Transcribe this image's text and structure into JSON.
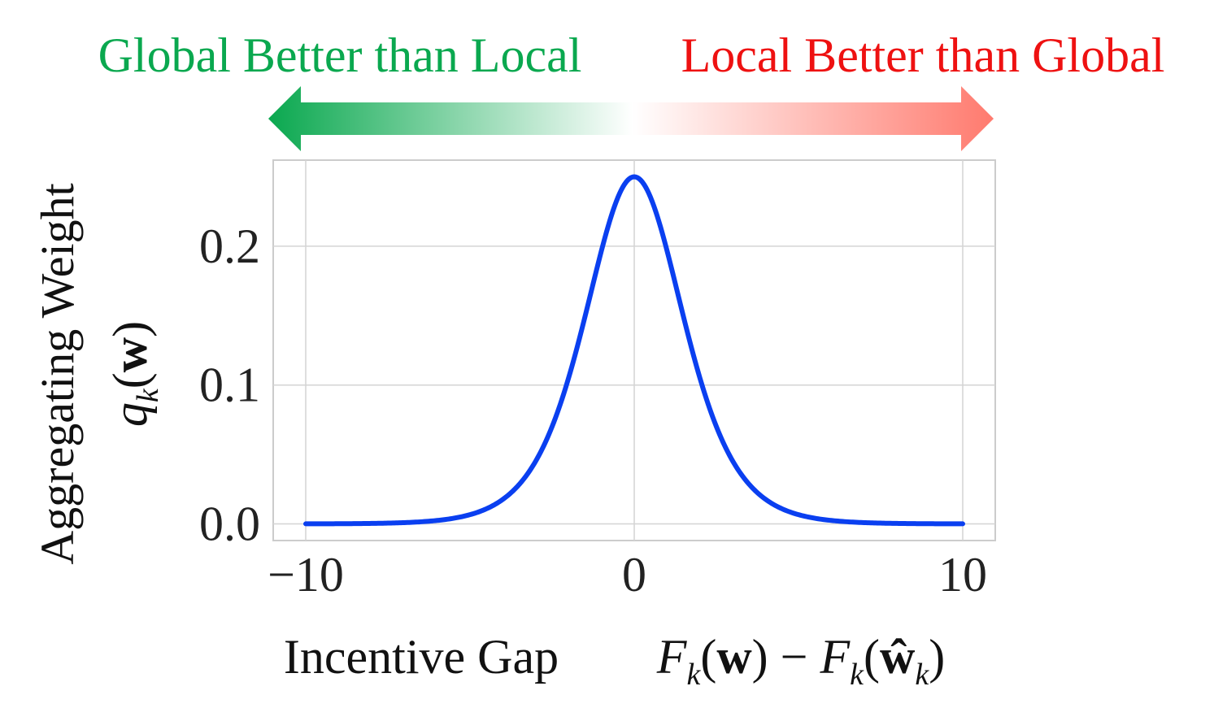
{
  "chart_data": {
    "type": "line",
    "title": "",
    "annotations": {
      "left_label": "Global Better than Local",
      "right_label": "Local Better than Global",
      "left_color": "#0aa84f",
      "right_color": "#ee1111",
      "arrow_left_color": "#0aa84f",
      "arrow_right_color": "#ff7a6e"
    },
    "ylabel_line1": "Aggregating Weight",
    "ylabel_math": "q_k(w)",
    "xlabel_text": "Incentive Gap",
    "xlabel_math": "F_k(w) − F_k(ŵ_k)",
    "xlim": [
      -10,
      10
    ],
    "ylim": [
      -0.012,
      0.262
    ],
    "xticks": [
      -10,
      0,
      10
    ],
    "xtick_labels": [
      "−10",
      "0",
      "10"
    ],
    "yticks": [
      0.0,
      0.1,
      0.2
    ],
    "ytick_labels": [
      "0.0",
      "0.1",
      "0.2"
    ],
    "grid": true,
    "series": [
      {
        "color": "#0a3ff0",
        "x": [
          -10,
          -9,
          -8,
          -7,
          -6,
          -5,
          -4,
          -3,
          -2.5,
          -2,
          -1.5,
          -1,
          -0.5,
          0,
          0.5,
          1,
          1.5,
          2,
          2.5,
          3,
          4,
          5,
          6,
          7,
          8,
          9,
          10
        ],
        "values": [
          0.0,
          0.0001,
          0.0003,
          0.0009,
          0.0025,
          0.0066,
          0.0177,
          0.0452,
          0.0701,
          0.105,
          0.1491,
          0.1966,
          0.235,
          0.25,
          0.235,
          0.1966,
          0.1491,
          0.105,
          0.0701,
          0.0452,
          0.0177,
          0.0066,
          0.0025,
          0.0009,
          0.0003,
          0.0001,
          0.0
        ]
      }
    ]
  }
}
